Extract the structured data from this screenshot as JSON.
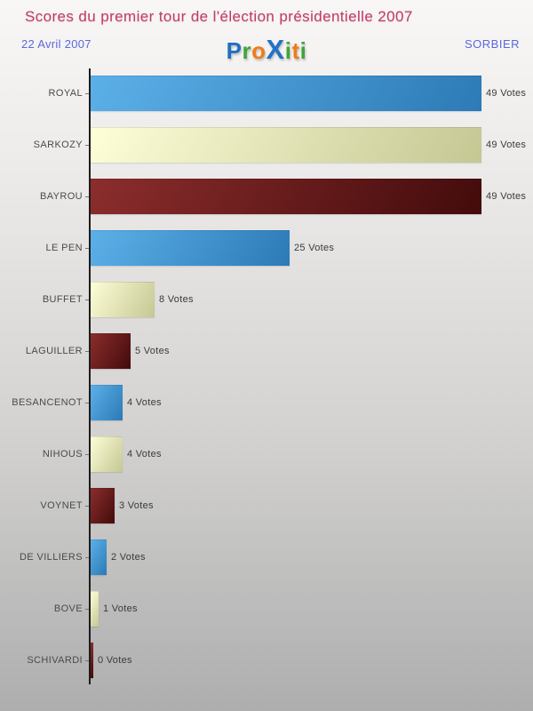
{
  "header": {
    "title": "Scores du premier tour de l'élection présidentielle 2007",
    "date": "22 Avril 2007",
    "location": "SORBIER",
    "logo": {
      "text": "ProXiti",
      "letters": [
        {
          "char": "P",
          "color": "#1e6fc4",
          "emphasis": false
        },
        {
          "char": "r",
          "color": "#3fa53a",
          "emphasis": false
        },
        {
          "char": "o",
          "color": "#ee7d18",
          "emphasis": false
        },
        {
          "char": "X",
          "color": "#2472c8",
          "emphasis": true
        },
        {
          "char": "i",
          "color": "#3fa53a",
          "emphasis": false
        },
        {
          "char": "t",
          "color": "#ee7d18",
          "emphasis": false
        },
        {
          "char": "i",
          "color": "#3fa53a",
          "emphasis": false
        }
      ]
    }
  },
  "chart_data": {
    "type": "bar",
    "orientation": "horizontal",
    "title": "Scores du premier tour de l'élection présidentielle 2007",
    "categories": [
      "ROYAL",
      "SARKOZY",
      "BAYROU",
      "LE PEN",
      "BUFFET",
      "LAGUILLER",
      "BESANCENOT",
      "NIHOUS",
      "VOYNET",
      "DE VILLIERS",
      "BOVE",
      "SCHIVARDI"
    ],
    "values": [
      49,
      49,
      49,
      25,
      8,
      5,
      4,
      4,
      3,
      2,
      1,
      0
    ],
    "value_labels": [
      "49 Votes",
      "49 Votes",
      "49 Votes",
      "25 Votes",
      "8 Votes",
      "5 Votes",
      "4 Votes",
      "4 Votes",
      "3 Votes",
      "2 Votes",
      "1 Votes",
      "0 Votes"
    ],
    "value_suffix": "Votes",
    "xlim": [
      0,
      49
    ],
    "grid": false,
    "legend": false,
    "palette": [
      {
        "name": "blue",
        "from": "#5cb0e8",
        "to": "#2c7ab6"
      },
      {
        "name": "cream",
        "from": "#fefed8",
        "to": "#c5c793"
      },
      {
        "name": "dark-red",
        "from": "#8c2d2d",
        "to": "#430b0b"
      }
    ]
  },
  "colors": {
    "title_text": "#c23a6a",
    "subtitle_text": "#5a68e0",
    "category_label": "#4a4a4a",
    "value_label": "#3a3a3a",
    "axis": "#1c1c1c",
    "background_top": "#f8f7f6",
    "background_bottom": "#aeaeae"
  }
}
